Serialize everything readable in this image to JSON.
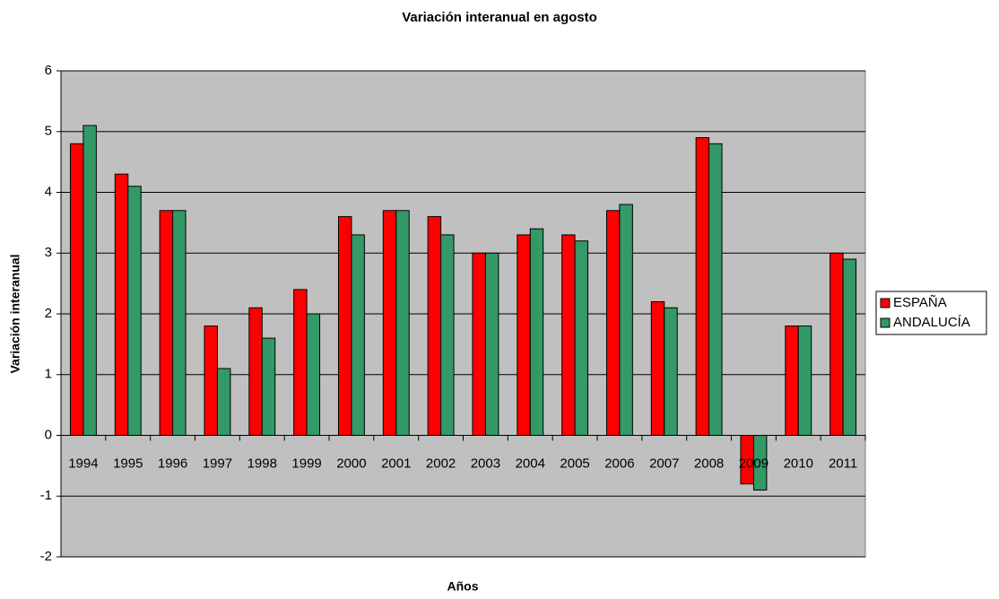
{
  "chart_data": {
    "type": "bar",
    "title": "Variación interanual en agosto",
    "x_label": "Años",
    "y_label": "Variación interanual",
    "categories": [
      "1994",
      "1995",
      "1996",
      "1997",
      "1998",
      "1999",
      "2000",
      "2001",
      "2002",
      "2003",
      "2004",
      "2005",
      "2006",
      "2007",
      "2008",
      "2009",
      "2010",
      "2011"
    ],
    "series": [
      {
        "name": "ESPAÑA",
        "color": "#ff0000",
        "values": [
          4.8,
          4.3,
          3.7,
          1.8,
          2.1,
          2.4,
          3.6,
          3.7,
          3.6,
          3.0,
          3.3,
          3.3,
          3.7,
          2.2,
          4.9,
          -0.8,
          1.8,
          3.0
        ]
      },
      {
        "name": "ANDALUCÍA",
        "color": "#339966",
        "values": [
          5.1,
          4.1,
          3.7,
          1.1,
          1.6,
          2.0,
          3.3,
          3.7,
          3.3,
          3.0,
          3.4,
          3.2,
          3.8,
          2.1,
          4.8,
          -0.9,
          1.8,
          2.9
        ]
      }
    ],
    "ylim": [
      -2,
      6
    ],
    "yticks": [
      -2,
      -1,
      0,
      1,
      2,
      3,
      4,
      5,
      6
    ],
    "grid": true,
    "legend": "right",
    "plot_background": "#c0c0c0"
  }
}
